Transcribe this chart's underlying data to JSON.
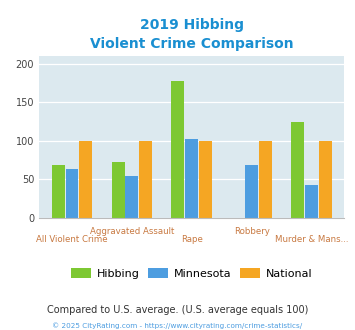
{
  "title_line1": "2019 Hibbing",
  "title_line2": "Violent Crime Comparison",
  "title_color": "#1a8fd1",
  "series": {
    "Hibbing": [
      68,
      72,
      178,
      0,
      125
    ],
    "Minnesota": [
      63,
      54,
      102,
      69,
      42
    ],
    "National": [
      100,
      100,
      100,
      100,
      100
    ]
  },
  "colors": {
    "Hibbing": "#7dc832",
    "Minnesota": "#4d9de0",
    "National": "#f5a623"
  },
  "ylim": [
    0,
    210
  ],
  "yticks": [
    0,
    50,
    100,
    150,
    200
  ],
  "plot_bg": "#dce9ef",
  "footnote": "Compared to U.S. average. (U.S. average equals 100)",
  "footnote_color": "#333333",
  "credit": "© 2025 CityRating.com - https://www.cityrating.com/crime-statistics/",
  "credit_color": "#4d9de0",
  "label_color": "#c87941",
  "bar_width": 0.23
}
